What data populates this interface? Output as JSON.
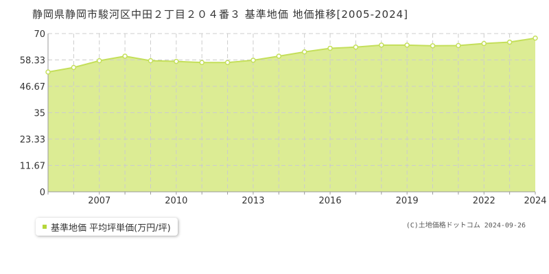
{
  "header": {
    "title": "静岡県静岡市駿河区中田２丁目２０４番３ 基準地価 地価推移[2005-2024]"
  },
  "legend": {
    "label": "基準地価 平均坪単価(万円/坪)"
  },
  "footer": {
    "credit": "(C)土地価格ドットコム 2024-09-26"
  },
  "colors": {
    "fill": "#dcec94",
    "line": "#c4df5a",
    "marker": "#c4df5a",
    "grid": "#cccccc",
    "legend_swatch": "#b5d63a"
  },
  "chart_data": {
    "type": "area",
    "x": [
      2005,
      2006,
      2007,
      2008,
      2009,
      2010,
      2011,
      2012,
      2013,
      2014,
      2015,
      2016,
      2017,
      2018,
      2019,
      2020,
      2021,
      2022,
      2023,
      2024
    ],
    "series": [
      {
        "name": "基準地価 平均坪単価(万円/坪)",
        "values": [
          53.0,
          55.0,
          58.0,
          60.0,
          58.0,
          57.7,
          57.2,
          57.2,
          58.2,
          60.0,
          61.9,
          63.5,
          64.0,
          64.9,
          64.9,
          64.6,
          64.7,
          65.6,
          66.2,
          68.0
        ]
      }
    ],
    "yticks": [
      "0",
      "11.67",
      "23.33",
      "35",
      "46.67",
      "58.33",
      "70"
    ],
    "xticks": [
      "2007",
      "2010",
      "2013",
      "2016",
      "2019",
      "2022",
      "2024"
    ],
    "ylim": [
      0,
      70
    ],
    "xlim": [
      2005,
      2024
    ],
    "grid": true,
    "legend_position": "bottom-left"
  }
}
